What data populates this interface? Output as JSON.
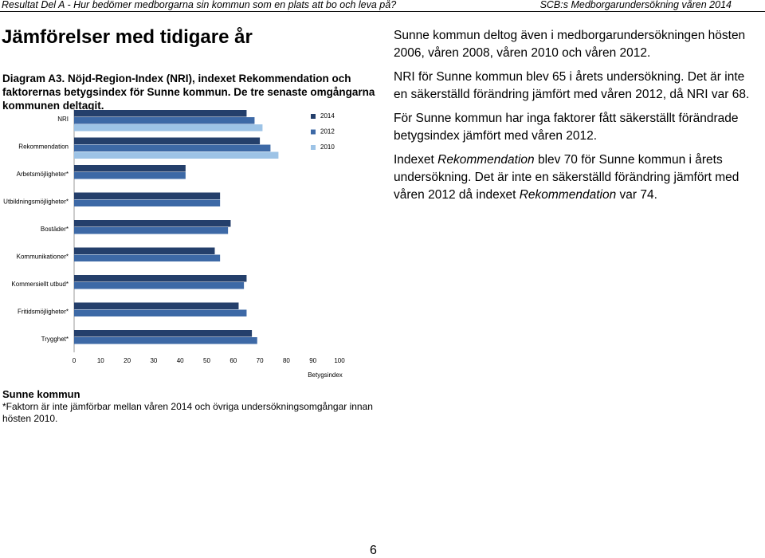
{
  "header": {
    "left": "Resultat Del A - Hur bedömer medborgarna sin kommun som en plats att bo och leva på?",
    "right": "SCB:s Medborgarundersökning våren 2014"
  },
  "heading": "Jämförelser med tidigare år",
  "chart_data": {
    "type": "bar",
    "orientation": "horizontal",
    "title": "Diagram A3. Nöjd-Region-Index (NRI), indexet Rekommendation och faktorernas betygsindex för Sunne kommun. De tre senaste omgångarna kommunen deltagit.",
    "categories": [
      "NRI",
      "Rekommendation",
      "Arbetsmöjligheter*",
      "Utbildningsmöjligheter*",
      "Bostäder*",
      "Kommunikationer*",
      "Kommersiellt utbud*",
      "Fritidsmöjligheter*",
      "Trygghet*"
    ],
    "series": [
      {
        "name": "2014",
        "color": "#243f6b",
        "values": [
          65,
          70,
          42,
          55,
          59,
          53,
          65,
          62,
          67
        ]
      },
      {
        "name": "2012",
        "color": "#3d69a6",
        "values": [
          68,
          74,
          42,
          55,
          58,
          55,
          64,
          65,
          69
        ]
      },
      {
        "name": "2010",
        "color": "#9dc3e6",
        "values": [
          71,
          77,
          null,
          null,
          null,
          null,
          null,
          null,
          null
        ]
      }
    ],
    "xlim": [
      0,
      100
    ],
    "xticks": [
      0,
      10,
      20,
      30,
      40,
      50,
      60,
      70,
      80,
      90,
      100
    ],
    "xlabel": "Betygsindex",
    "grid": false,
    "legend": "top-right"
  },
  "chart_caption": "Sunne kommun",
  "footnote": "*Faktorn är inte jämförbar mellan våren 2014 och övriga undersökningsomgångar innan hösten 2010.",
  "paragraphs": [
    [
      "Sunne kommun deltog även i medborgarundersökningen hösten 2006, våren 2008, våren 2010 och våren 2012."
    ],
    [
      "NRI för Sunne kommun blev 65 i årets undersökning. Det är inte en säkerställd förändring jämfört med våren 2012, då NRI var 68."
    ],
    [
      "För Sunne kommun har inga faktorer fått säkerställt förändrade betygsindex jämfört med våren 2012."
    ],
    [
      "Indexet ",
      {
        "text": "Rekommendation",
        "italic": true
      },
      " blev 70 för Sunne kommun i årets undersökning. Det är inte en säkerställd förändring jämfört med våren 2012 då indexet ",
      {
        "text": "Rekommendation",
        "italic": true
      },
      " var 74."
    ]
  ],
  "page_number": "6"
}
